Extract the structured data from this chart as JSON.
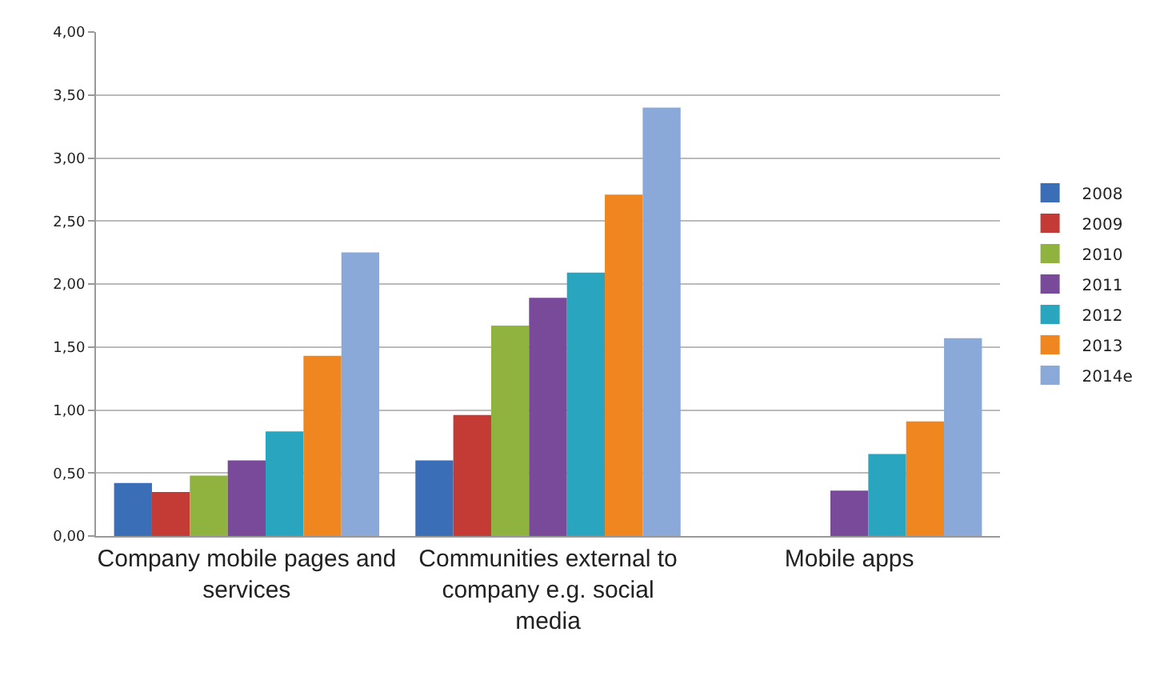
{
  "chart_data": {
    "type": "bar",
    "categories": [
      "Company mobile pages and services",
      "Communities external to company e.g. social media",
      "Mobile apps"
    ],
    "series": [
      {
        "name": "2008",
        "color": "#3a6fb8",
        "values": [
          0.42,
          0.6,
          null
        ]
      },
      {
        "name": "2009",
        "color": "#c43a35",
        "values": [
          0.35,
          0.96,
          null
        ]
      },
      {
        "name": "2010",
        "color": "#8fb33e",
        "values": [
          0.48,
          1.67,
          null
        ]
      },
      {
        "name": "2011",
        "color": "#7a4a9a",
        "values": [
          0.6,
          1.89,
          0.36
        ]
      },
      {
        "name": "2012",
        "color": "#2aa5c0",
        "values": [
          0.83,
          2.09,
          0.65
        ]
      },
      {
        "name": "2013",
        "color": "#f0861f",
        "values": [
          1.43,
          2.71,
          0.91
        ]
      },
      {
        "name": "2014e",
        "color": "#8aa9d8",
        "values": [
          2.25,
          3.4,
          1.57
        ]
      }
    ],
    "ylim": [
      0,
      4
    ],
    "yticks": [
      {
        "value": 0,
        "label": "0,00"
      },
      {
        "value": 0.5,
        "label": "0,50"
      },
      {
        "value": 1,
        "label": "1,00"
      },
      {
        "value": 1.5,
        "label": "1,50"
      },
      {
        "value": 2,
        "label": "2,00"
      },
      {
        "value": 2.5,
        "label": "2,50"
      },
      {
        "value": 3,
        "label": "3,00"
      },
      {
        "value": 3.5,
        "label": "3,50"
      },
      {
        "value": 4,
        "label": "4,00"
      }
    ],
    "grid": "y",
    "legend": "right"
  }
}
